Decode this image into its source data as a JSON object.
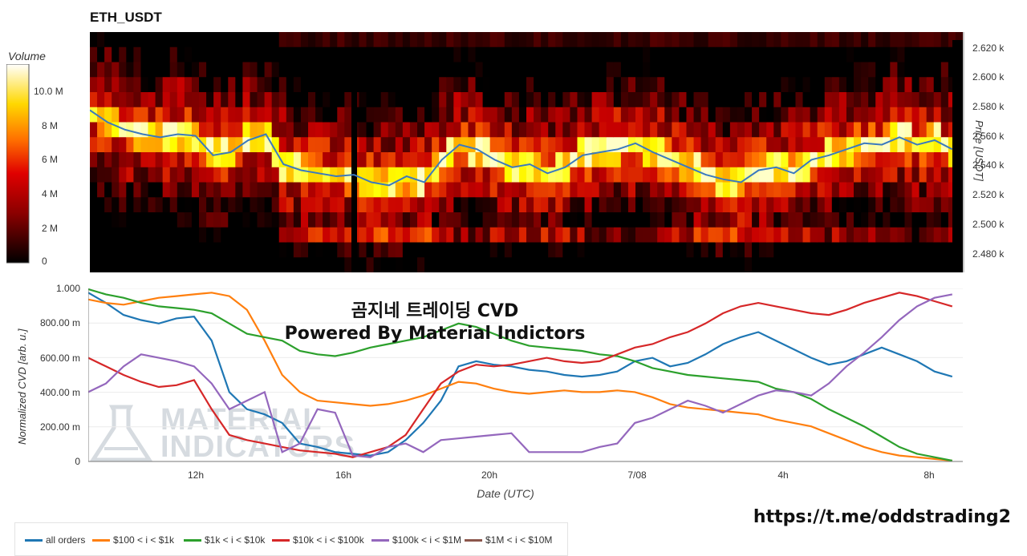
{
  "header": {
    "title": "ETH_USDT"
  },
  "colorbar": {
    "label": "Volume",
    "ticks": [
      "10.0 M",
      "8 M",
      "6 M",
      "4 M",
      "2 M",
      "0"
    ]
  },
  "price_axis": {
    "label": "Price [USDT]",
    "ticks": [
      "2.620 k",
      "2.600 k",
      "2.580 k",
      "2.560 k",
      "2.540 k",
      "2.520 k",
      "2.500 k",
      "2.480 k"
    ]
  },
  "cvd_axis": {
    "label": "Normalized CVD [arb. u.]",
    "ticks": [
      "1.000",
      "800.00 m",
      "600.00 m",
      "400.00 m",
      "200.00 m",
      "0"
    ]
  },
  "time_axis": {
    "label": "Date (UTC)",
    "ticks": [
      "12h",
      "16h",
      "20h",
      "7/08",
      "4h",
      "8h"
    ]
  },
  "overlay": {
    "line1": "곰지네 트레이딩 CVD",
    "line2": "Powered By Material Indictors"
  },
  "watermark": {
    "line1": "MATERIAL",
    "line2": "INDICATORS"
  },
  "link": "https://t.me/oddstrading2",
  "legend": [
    {
      "label": "all orders",
      "color": "#1f77b4"
    },
    {
      "label": "$100 < i < $1k",
      "color": "#ff7f0e"
    },
    {
      "label": "$1k < i < $10k",
      "color": "#2ca02c"
    },
    {
      "label": "$10k < i < $100k",
      "color": "#d62728"
    },
    {
      "label": "$100k < i < $1M",
      "color": "#9467bd"
    },
    {
      "label": "$1M < i < $10M",
      "color": "#8c564b"
    }
  ],
  "chart_data": [
    {
      "type": "heatmap",
      "title": "ETH_USDT",
      "ylabel": "Price [USDT]",
      "ylim": [
        2470,
        2630
      ],
      "colorbar_label": "Volume",
      "colorbar_range": [
        0,
        11000000
      ],
      "price_line": {
        "x_hours": [
          9,
          9.5,
          10,
          10.5,
          11,
          11.5,
          12,
          12.5,
          13,
          13.5,
          14,
          14.5,
          15,
          15.5,
          16,
          16.5,
          17,
          17.5,
          18,
          18.5,
          19,
          19.5,
          20,
          20.5,
          21,
          21.5,
          22,
          22.5,
          23,
          23.5,
          24,
          24.5,
          25,
          25.5,
          26,
          26.5,
          27,
          27.5,
          28,
          28.5,
          29,
          29.5,
          30,
          30.5,
          31,
          31.5,
          32,
          32.5,
          33,
          33.5
        ],
        "price": [
          2578,
          2570,
          2565,
          2562,
          2560,
          2562,
          2561,
          2548,
          2550,
          2558,
          2562,
          2542,
          2538,
          2536,
          2534,
          2535,
          2530,
          2528,
          2534,
          2530,
          2545,
          2555,
          2552,
          2545,
          2540,
          2542,
          2536,
          2540,
          2548,
          2550,
          2552,
          2556,
          2550,
          2545,
          2540,
          2535,
          2532,
          2530,
          2538,
          2540,
          2536,
          2545,
          2548,
          2552,
          2556,
          2555,
          2560,
          2555,
          2558,
          2552
        ]
      }
    },
    {
      "type": "line",
      "xlabel": "Date (UTC)",
      "ylabel": "Normalized CVD [arb. u.]",
      "ylim": [
        0,
        1
      ],
      "x_hours": [
        9,
        9.5,
        10,
        10.5,
        11,
        11.5,
        12,
        12.5,
        13,
        13.5,
        14,
        14.5,
        15,
        15.5,
        16,
        16.5,
        17,
        17.5,
        18,
        18.5,
        19,
        19.5,
        20,
        20.5,
        21,
        21.5,
        22,
        22.5,
        23,
        23.5,
        24,
        24.5,
        25,
        25.5,
        26,
        26.5,
        27,
        27.5,
        28,
        28.5,
        29,
        29.5,
        30,
        30.5,
        31,
        31.5,
        32,
        32.5,
        33,
        33.5
      ],
      "series": [
        {
          "name": "all orders",
          "values": [
            0.98,
            0.92,
            0.85,
            0.82,
            0.8,
            0.83,
            0.84,
            0.7,
            0.4,
            0.3,
            0.27,
            0.22,
            0.1,
            0.08,
            0.05,
            0.04,
            0.03,
            0.05,
            0.12,
            0.22,
            0.35,
            0.55,
            0.58,
            0.56,
            0.55,
            0.53,
            0.52,
            0.5,
            0.49,
            0.5,
            0.52,
            0.58,
            0.6,
            0.55,
            0.57,
            0.62,
            0.68,
            0.72,
            0.75,
            0.7,
            0.65,
            0.6,
            0.56,
            0.58,
            0.62,
            0.66,
            0.62,
            0.58,
            0.52,
            0.49
          ]
        },
        {
          "name": "$100 < i < $1k",
          "values": [
            0.94,
            0.92,
            0.91,
            0.93,
            0.95,
            0.96,
            0.97,
            0.98,
            0.96,
            0.88,
            0.7,
            0.5,
            0.4,
            0.35,
            0.34,
            0.33,
            0.32,
            0.33,
            0.35,
            0.38,
            0.42,
            0.46,
            0.45,
            0.42,
            0.4,
            0.39,
            0.4,
            0.41,
            0.4,
            0.4,
            0.41,
            0.4,
            0.37,
            0.33,
            0.31,
            0.3,
            0.29,
            0.28,
            0.27,
            0.24,
            0.22,
            0.2,
            0.16,
            0.12,
            0.08,
            0.05,
            0.03,
            0.02,
            0.01,
            0.0
          ]
        },
        {
          "name": "$1k < i < $10k",
          "values": [
            1.0,
            0.97,
            0.95,
            0.92,
            0.9,
            0.89,
            0.88,
            0.86,
            0.8,
            0.74,
            0.72,
            0.7,
            0.64,
            0.62,
            0.61,
            0.63,
            0.66,
            0.68,
            0.7,
            0.72,
            0.76,
            0.8,
            0.78,
            0.74,
            0.7,
            0.67,
            0.66,
            0.65,
            0.64,
            0.62,
            0.61,
            0.58,
            0.54,
            0.52,
            0.5,
            0.49,
            0.48,
            0.47,
            0.46,
            0.42,
            0.4,
            0.36,
            0.3,
            0.25,
            0.2,
            0.14,
            0.08,
            0.04,
            0.02,
            0.0
          ]
        },
        {
          "name": "$10k < i < $100k",
          "values": [
            0.6,
            0.55,
            0.5,
            0.46,
            0.43,
            0.44,
            0.47,
            0.3,
            0.15,
            0.12,
            0.1,
            0.08,
            0.06,
            0.05,
            0.04,
            0.02,
            0.05,
            0.08,
            0.15,
            0.3,
            0.45,
            0.52,
            0.56,
            0.55,
            0.56,
            0.58,
            0.6,
            0.58,
            0.57,
            0.58,
            0.62,
            0.66,
            0.68,
            0.72,
            0.75,
            0.8,
            0.86,
            0.9,
            0.92,
            0.9,
            0.88,
            0.86,
            0.85,
            0.88,
            0.92,
            0.95,
            0.98,
            0.96,
            0.93,
            0.9
          ]
        },
        {
          "name": "$100k < i < $1M",
          "values": [
            0.4,
            0.45,
            0.55,
            0.62,
            0.6,
            0.58,
            0.55,
            0.45,
            0.3,
            0.35,
            0.4,
            0.05,
            0.1,
            0.3,
            0.28,
            0.03,
            0.02,
            0.08,
            0.1,
            0.05,
            0.12,
            0.13,
            0.14,
            0.15,
            0.16,
            0.05,
            0.05,
            0.05,
            0.05,
            0.08,
            0.1,
            0.22,
            0.25,
            0.3,
            0.35,
            0.32,
            0.28,
            0.33,
            0.38,
            0.41,
            0.4,
            0.38,
            0.45,
            0.55,
            0.63,
            0.72,
            0.82,
            0.9,
            0.95,
            0.97
          ]
        }
      ]
    }
  ]
}
